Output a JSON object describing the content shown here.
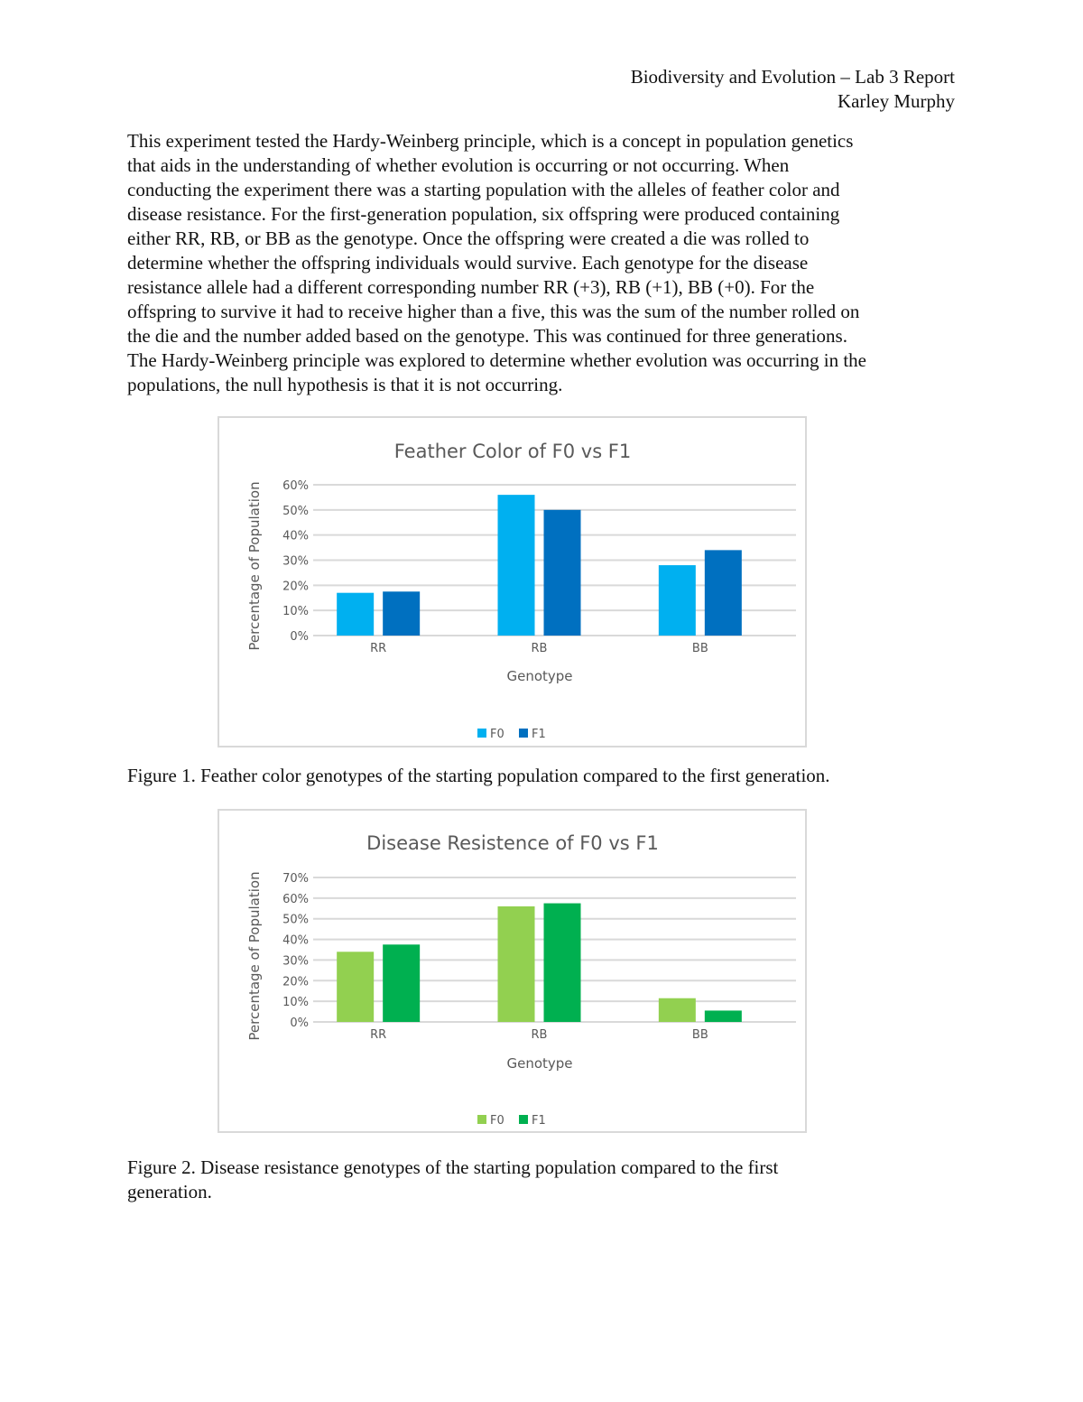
{
  "header": {
    "course": "Biodiversity and Evolution – Lab 3 Report",
    "author": "Karley Murphy"
  },
  "body_lines": [
    "This experiment tested the Hardy-Weinberg principle, which is a concept in population genetics",
    "that aids in the understanding of whether evolution is occurring or not occurring. When",
    "conducting the experiment there was a starting population with the alleles of feather color and",
    "disease resistance. For the first-generation population, six offspring were produced containing",
    "either RR, RB, or BB as the genotype. Once the offspring were created a die was rolled to",
    "determine whether the offspring individuals would survive. Each genotype for the disease",
    "resistance allele had a different corresponding number RR (+3), RB (+1), BB (+0). For the",
    "offspring to survive it had to receive higher than a five, this was the sum of the number rolled on",
    "the die and the number added based on the genotype. This was continued for three generations.",
    "The Hardy-Weinberg principle was explored to determine whether evolution was occurring in the",
    "populations, the null hypothesis is that it is not occurring."
  ],
  "captions": {
    "figure1": "Figure 1. Feather color genotypes of the starting population compared to the first generation.",
    "figure2_lines": [
      "Figure 2. Disease resistance genotypes of the starting population compared to the first",
      "generation."
    ]
  },
  "chart_data": [
    {
      "type": "bar",
      "title": "Feather Color of F0 vs F1",
      "xlabel": "Genotype",
      "ylabel": "Percentage of Population",
      "categories": [
        "RR",
        "RB",
        "BB"
      ],
      "yticks": [
        "0%",
        "10%",
        "20%",
        "30%",
        "40%",
        "50%",
        "60%"
      ],
      "ylim": [
        0,
        60
      ],
      "grid": true,
      "legend": "bottom",
      "series": [
        {
          "name": "F0",
          "color": "#00b0f0",
          "values": [
            17,
            56,
            28
          ]
        },
        {
          "name": "F1",
          "color": "#0070c0",
          "values": [
            17.5,
            50,
            34
          ]
        }
      ]
    },
    {
      "type": "bar",
      "title": "Disease Resistence of F0 vs F1",
      "xlabel": "Genotype",
      "ylabel": "Percentage of Population",
      "categories": [
        "RR",
        "RB",
        "BB"
      ],
      "yticks": [
        "0%",
        "10%",
        "20%",
        "30%",
        "40%",
        "50%",
        "60%",
        "70%"
      ],
      "ylim": [
        0,
        70
      ],
      "grid": true,
      "legend": "bottom",
      "series": [
        {
          "name": "F0",
          "color": "#92d050",
          "values": [
            34,
            56,
            11.5
          ]
        },
        {
          "name": "F1",
          "color": "#00b050",
          "values": [
            37.5,
            57.5,
            5.5
          ]
        }
      ]
    }
  ]
}
